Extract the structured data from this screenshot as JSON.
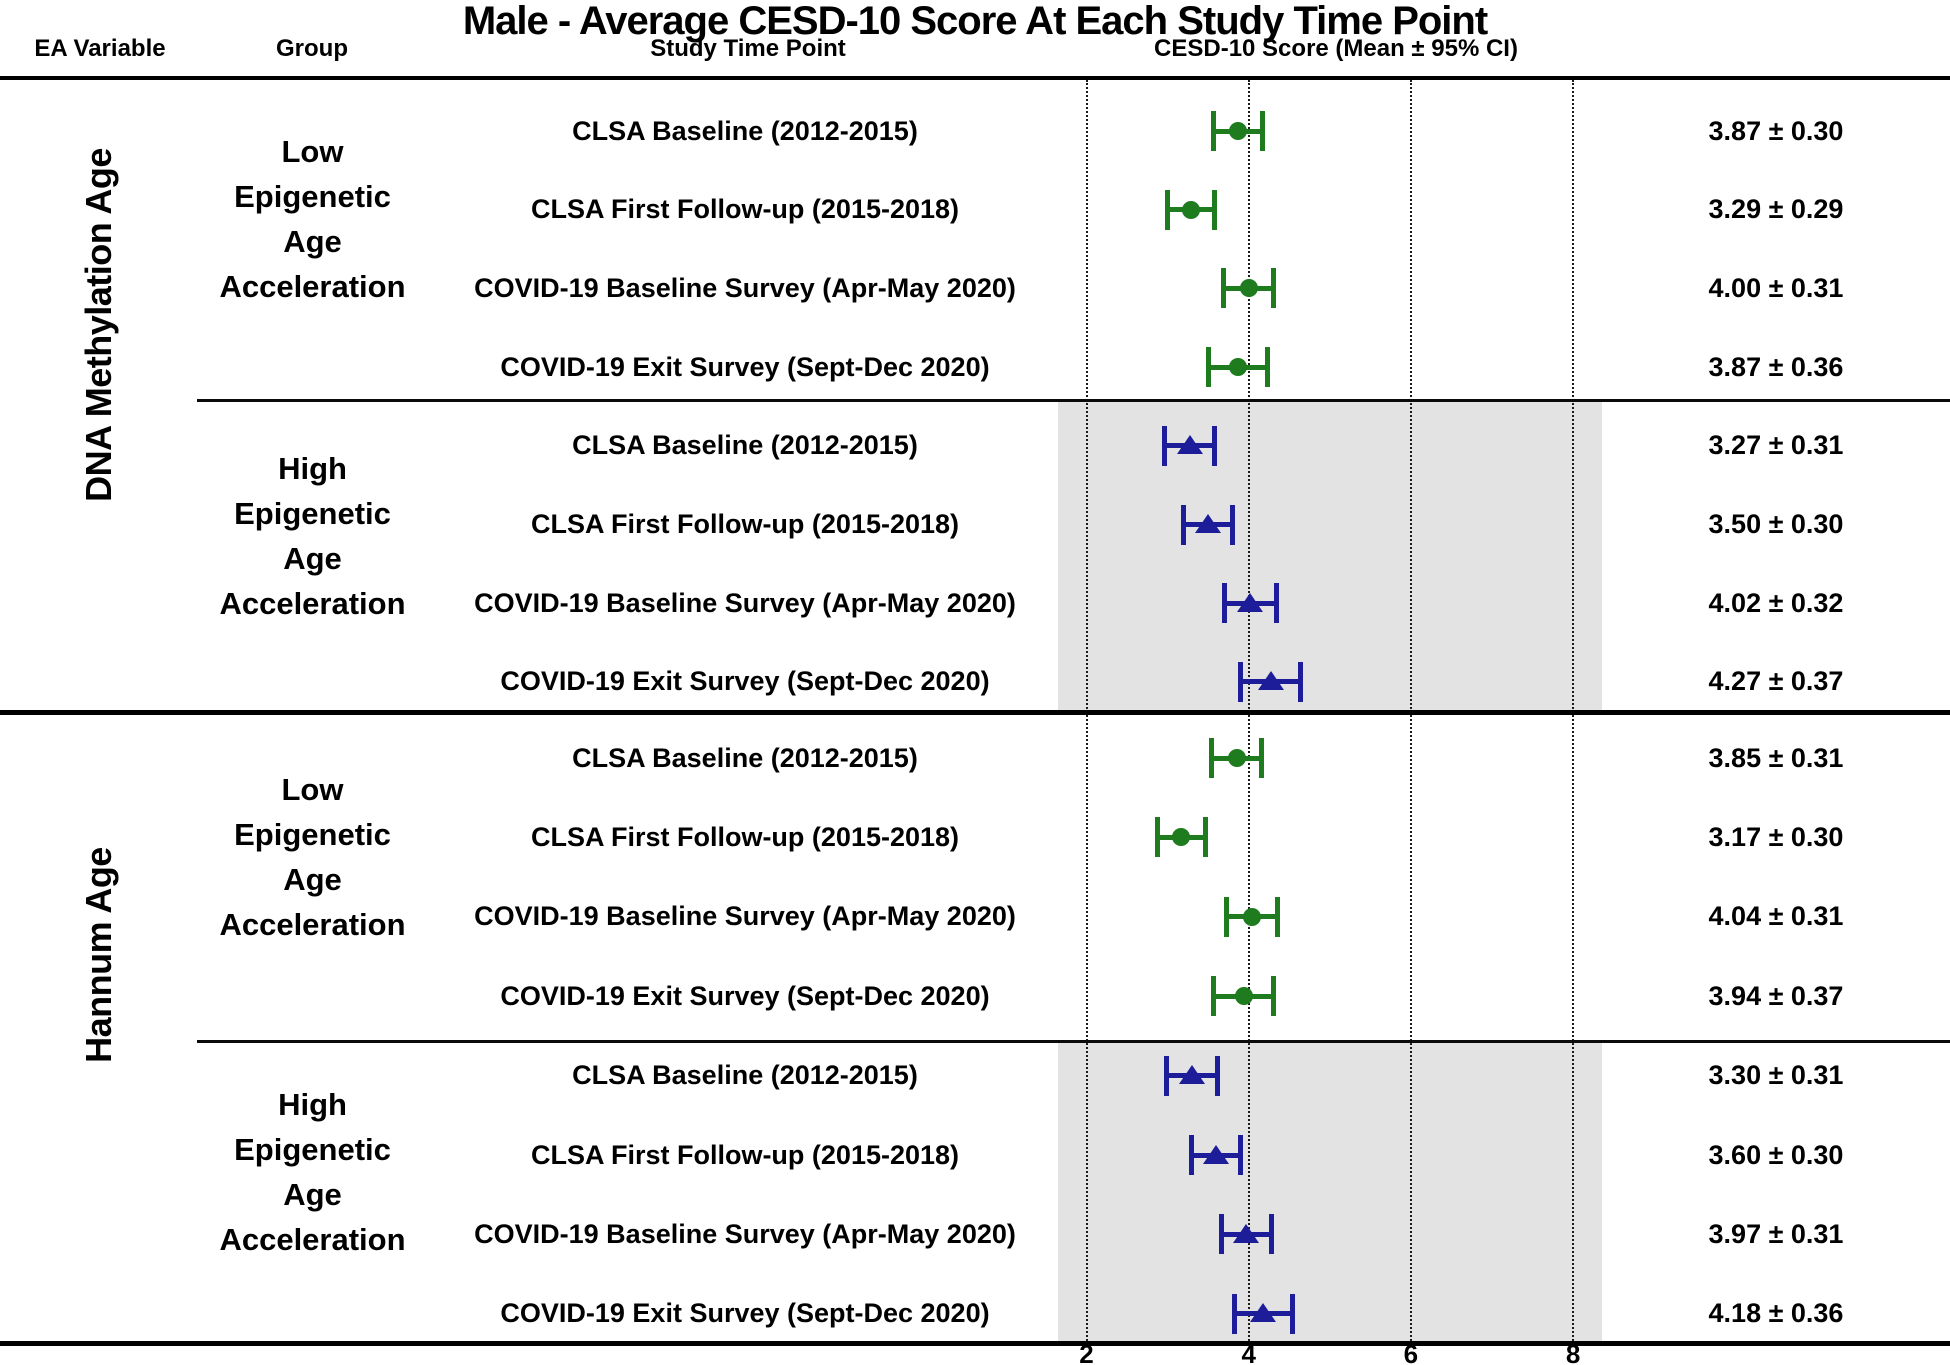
{
  "title": "Male - Average CESD-10 Score At Each Study Time Point",
  "columns": {
    "ea_variable": "EA Variable",
    "group": "Group",
    "time_point": "Study Time Point",
    "score": "CESD-10 Score (Mean ± 95% CI)"
  },
  "chart_data": {
    "type": "scatter",
    "subtype": "forest-plot-means-with-95ci",
    "x_axis": {
      "ticks": [
        2,
        4,
        6,
        8
      ],
      "range": [
        1.648,
        8.357
      ],
      "gridlines": "dotted-vertical"
    },
    "colors": {
      "low_group": "#1e7b1e",
      "high_group": "#1d1d99",
      "high_group_shading": "#e3e3e3",
      "lines": "#000000"
    },
    "sections": [
      {
        "ea_variable": "DNA Methylation Age",
        "groups": [
          {
            "name": "Low Epigenetic Age Acceleration",
            "label_lines": [
              "Low",
              "Epigenetic",
              "Age",
              "Acceleration"
            ],
            "marker": "circle",
            "color": "#1e7b1e",
            "shaded": false,
            "rows": [
              {
                "time_point": "CLSA Baseline (2012-2015)",
                "mean": 3.87,
                "ci": 0.3,
                "display": "3.87 ± 0.30"
              },
              {
                "time_point": "CLSA First Follow-up (2015-2018)",
                "mean": 3.29,
                "ci": 0.29,
                "display": "3.29 ± 0.29"
              },
              {
                "time_point": "COVID-19 Baseline Survey (Apr-May 2020)",
                "mean": 4.0,
                "ci": 0.31,
                "display": "4.00 ± 0.31"
              },
              {
                "time_point": "COVID-19 Exit Survey (Sept-Dec 2020)",
                "mean": 3.87,
                "ci": 0.36,
                "display": "3.87 ± 0.36"
              }
            ]
          },
          {
            "name": "High Epigenetic Age Acceleration",
            "label_lines": [
              "High",
              "Epigenetic",
              "Age",
              "Acceleration"
            ],
            "marker": "triangle-up",
            "color": "#1d1d99",
            "shaded": true,
            "rows": [
              {
                "time_point": "CLSA Baseline (2012-2015)",
                "mean": 3.27,
                "ci": 0.31,
                "display": "3.27 ± 0.31"
              },
              {
                "time_point": "CLSA First Follow-up (2015-2018)",
                "mean": 3.5,
                "ci": 0.3,
                "display": "3.50 ± 0.30"
              },
              {
                "time_point": "COVID-19 Baseline Survey (Apr-May 2020)",
                "mean": 4.02,
                "ci": 0.32,
                "display": "4.02 ± 0.32"
              },
              {
                "time_point": "COVID-19 Exit Survey (Sept-Dec 2020)",
                "mean": 4.27,
                "ci": 0.37,
                "display": "4.27 ± 0.37"
              }
            ]
          }
        ]
      },
      {
        "ea_variable": "Hannum Age",
        "groups": [
          {
            "name": "Low Epigenetic Age Acceleration",
            "label_lines": [
              "Low",
              "Epigenetic",
              "Age",
              "Acceleration"
            ],
            "marker": "circle",
            "color": "#1e7b1e",
            "shaded": false,
            "rows": [
              {
                "time_point": "CLSA Baseline (2012-2015)",
                "mean": 3.85,
                "ci": 0.31,
                "display": "3.85 ± 0.31"
              },
              {
                "time_point": "CLSA First Follow-up (2015-2018)",
                "mean": 3.17,
                "ci": 0.3,
                "display": "3.17 ± 0.30"
              },
              {
                "time_point": "COVID-19 Baseline Survey (Apr-May 2020)",
                "mean": 4.04,
                "ci": 0.31,
                "display": "4.04 ± 0.31"
              },
              {
                "time_point": "COVID-19 Exit Survey (Sept-Dec 2020)",
                "mean": 3.94,
                "ci": 0.37,
                "display": "3.94 ± 0.37"
              }
            ]
          },
          {
            "name": "High Epigenetic Age Acceleration",
            "label_lines": [
              "High",
              "Epigenetic",
              "Age",
              "Acceleration"
            ],
            "marker": "triangle-up",
            "color": "#1d1d99",
            "shaded": true,
            "rows": [
              {
                "time_point": "CLSA Baseline (2012-2015)",
                "mean": 3.3,
                "ci": 0.31,
                "display": "3.30 ± 0.31"
              },
              {
                "time_point": "CLSA First Follow-up (2015-2018)",
                "mean": 3.6,
                "ci": 0.3,
                "display": "3.60 ± 0.30"
              },
              {
                "time_point": "COVID-19 Baseline Survey (Apr-May 2020)",
                "mean": 3.97,
                "ci": 0.31,
                "display": "3.97 ± 0.31"
              },
              {
                "time_point": "COVID-19 Exit Survey (Sept-Dec 2020)",
                "mean": 4.18,
                "ci": 0.36,
                "display": "4.18 ± 0.36"
              }
            ]
          }
        ]
      }
    ]
  }
}
